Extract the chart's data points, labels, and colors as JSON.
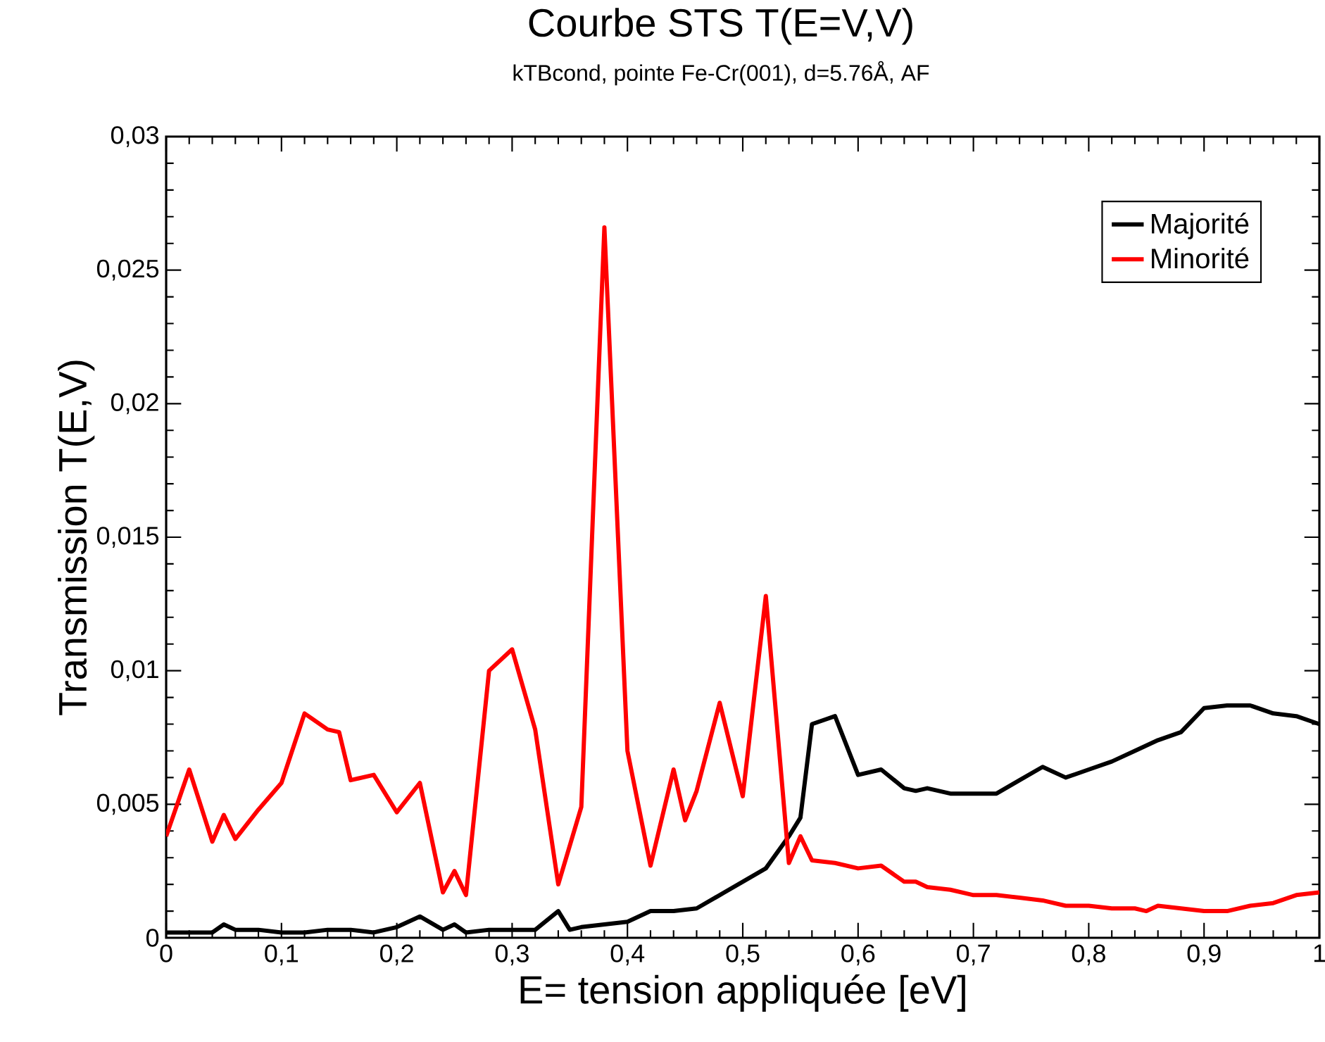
{
  "chart_data": {
    "type": "line",
    "title": "Courbe STS T(E=V,V)",
    "subtitle": "kTBcond, pointe Fe-Cr(001), d=5.76Å, AF",
    "xlabel": "E= tension appliquée [eV]",
    "ylabel": "Transmission T(E,V)",
    "xlim": [
      0,
      1
    ],
    "ylim": [
      0,
      0.03
    ],
    "xticks": [
      0,
      {
        "value": 0.1,
        "label": "0,1"
      },
      {
        "value": 0.2,
        "label": "0,2"
      },
      {
        "value": 0.3,
        "label": "0,3"
      },
      {
        "value": 0.4,
        "label": "0,4"
      },
      {
        "value": 0.5,
        "label": "0,5"
      },
      {
        "value": 0.6,
        "label": "0,6"
      },
      {
        "value": 0.7,
        "label": "0,7"
      },
      {
        "value": 0.8,
        "label": "0,8"
      },
      {
        "value": 0.9,
        "label": "0,9"
      },
      1
    ],
    "yticks": [
      0,
      {
        "value": 0.005,
        "label": "0,005"
      },
      {
        "value": 0.01,
        "label": "0,01"
      },
      {
        "value": 0.015,
        "label": "0,015"
      },
      {
        "value": 0.02,
        "label": "0,02"
      },
      {
        "value": 0.025,
        "label": "0,025"
      },
      {
        "value": 0.03,
        "label": "0,03"
      }
    ],
    "legend": "top right",
    "line_style": "solid",
    "series": [
      {
        "name": "Majorité",
        "color": "#000000",
        "x": [
          0,
          0.02,
          0.04,
          0.05,
          0.06,
          0.08,
          0.1,
          0.12,
          0.14,
          0.16,
          0.18,
          0.2,
          0.22,
          0.24,
          0.25,
          0.26,
          0.28,
          0.3,
          0.32,
          0.34,
          0.35,
          0.36,
          0.38,
          0.4,
          0.42,
          0.44,
          0.46,
          0.48,
          0.5,
          0.52,
          0.54,
          0.55,
          0.56,
          0.58,
          0.6,
          0.62,
          0.64,
          0.65,
          0.66,
          0.68,
          0.7,
          0.72,
          0.74,
          0.76,
          0.78,
          0.8,
          0.82,
          0.84,
          0.86,
          0.88,
          0.9,
          0.92,
          0.94,
          0.96,
          0.98,
          1
        ],
        "values": [
          0.0002,
          0.0002,
          0.0002,
          0.0005,
          0.0003,
          0.0003,
          0.0002,
          0.0002,
          0.0003,
          0.0003,
          0.0002,
          0.0004,
          0.0008,
          0.0003,
          0.0005,
          0.0002,
          0.0003,
          0.0003,
          0.0003,
          0.001,
          0.0003,
          0.0004,
          0.0005,
          0.0006,
          0.001,
          0.001,
          0.0011,
          0.0016,
          0.0021,
          0.0026,
          0.0038,
          0.0045,
          0.008,
          0.0083,
          0.0061,
          0.0063,
          0.0056,
          0.0055,
          0.0056,
          0.0054,
          0.0054,
          0.0054,
          0.0059,
          0.0064,
          0.006,
          0.0063,
          0.0066,
          0.007,
          0.0074,
          0.0077,
          0.0086,
          0.0087,
          0.0087,
          0.0084,
          0.0083,
          0.008
        ]
      },
      {
        "name": "Minorité",
        "color": "#ff0000",
        "x": [
          0,
          0.02,
          0.04,
          0.05,
          0.06,
          0.08,
          0.1,
          0.12,
          0.14,
          0.15,
          0.16,
          0.18,
          0.2,
          0.22,
          0.24,
          0.25,
          0.26,
          0.28,
          0.3,
          0.32,
          0.34,
          0.36,
          0.38,
          0.4,
          0.42,
          0.44,
          0.45,
          0.46,
          0.48,
          0.5,
          0.52,
          0.54,
          0.55,
          0.56,
          0.58,
          0.6,
          0.62,
          0.64,
          0.65,
          0.66,
          0.68,
          0.7,
          0.72,
          0.74,
          0.76,
          0.78,
          0.8,
          0.82,
          0.84,
          0.85,
          0.86,
          0.88,
          0.9,
          0.92,
          0.94,
          0.96,
          0.98,
          1
        ],
        "values": [
          0.0038,
          0.0063,
          0.0036,
          0.0046,
          0.0037,
          0.0048,
          0.0058,
          0.0084,
          0.0078,
          0.0077,
          0.0059,
          0.0061,
          0.0047,
          0.0058,
          0.0017,
          0.0025,
          0.0016,
          0.01,
          0.0108,
          0.0078,
          0.002,
          0.0049,
          0.0266,
          0.007,
          0.0027,
          0.0063,
          0.0044,
          0.0055,
          0.0088,
          0.0053,
          0.0128,
          0.0028,
          0.0038,
          0.0029,
          0.0028,
          0.0026,
          0.0027,
          0.0021,
          0.0021,
          0.0019,
          0.0018,
          0.0016,
          0.0016,
          0.0015,
          0.0014,
          0.0012,
          0.0012,
          0.0011,
          0.0011,
          0.001,
          0.0012,
          0.0011,
          0.001,
          0.001,
          0.0012,
          0.0013,
          0.0016,
          0.0017
        ]
      }
    ]
  }
}
